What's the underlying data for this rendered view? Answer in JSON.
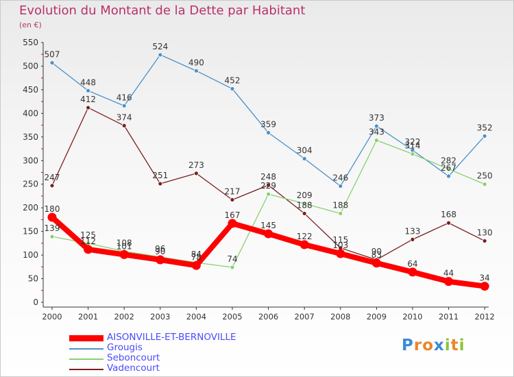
{
  "title": "Evolution du Montant de la Dette par Habitant",
  "subtitle": "(en €)",
  "logo": "Proxiti",
  "chart_data": {
    "type": "line",
    "title": "Evolution du Montant de la Dette par Habitant",
    "subtitle": "(en €)",
    "x": [
      "2000",
      "2001",
      "2002",
      "2003",
      "2004",
      "2005",
      "2006",
      "2007",
      "2008",
      "2009",
      "2010",
      "2011",
      "2012"
    ],
    "ylim": [
      0,
      550
    ],
    "yticks": [
      0,
      50,
      100,
      150,
      200,
      250,
      300,
      350,
      400,
      450,
      500,
      550
    ],
    "grid": false,
    "legend_position": "bottom-left",
    "series": [
      {
        "name": "AISONVILLE-ET-BERNOVILLE",
        "color": "#ff0000",
        "values": [
          180,
          112,
          101,
          90,
          78,
          167,
          145,
          122,
          103,
          83,
          64,
          44,
          34
        ],
        "labels": [
          "180",
          "112",
          "101",
          "90",
          "78",
          "167",
          "145",
          "122",
          "103",
          "83",
          "64",
          "44",
          "34"
        ]
      },
      {
        "name": "Grougis",
        "color": "#4a90c8",
        "values": [
          507,
          448,
          416,
          524,
          490,
          452,
          359,
          304,
          246,
          373,
          322,
          267,
          352
        ],
        "labels": [
          "507",
          "448",
          "416",
          "524",
          "490",
          "452",
          "359",
          "304",
          "246",
          "373",
          "322",
          "267",
          "352"
        ]
      },
      {
        "name": "Seboncourt",
        "color": "#88d070",
        "values": [
          139,
          125,
          108,
          96,
          84,
          74,
          229,
          209,
          188,
          343,
          314,
          282,
          250
        ],
        "labels": [
          "139",
          "125",
          "108",
          "96",
          "84",
          "74",
          "229",
          "209",
          "188",
          "343",
          "314",
          "282",
          "250"
        ]
      },
      {
        "name": "Vadencourt",
        "color": "#7a1f1f",
        "values": [
          247,
          412,
          374,
          251,
          273,
          217,
          248,
          188,
          115,
          90,
          133,
          168,
          130
        ],
        "labels": [
          "247",
          "412",
          "374",
          "251",
          "273",
          "217",
          "248",
          "188",
          "115",
          "90",
          "133",
          "168",
          "130"
        ]
      }
    ]
  },
  "colors": {
    "title": "#b8316a",
    "legend_text": "#4a4aff",
    "axis": "#333333",
    "tick_red": "#ff0000"
  }
}
